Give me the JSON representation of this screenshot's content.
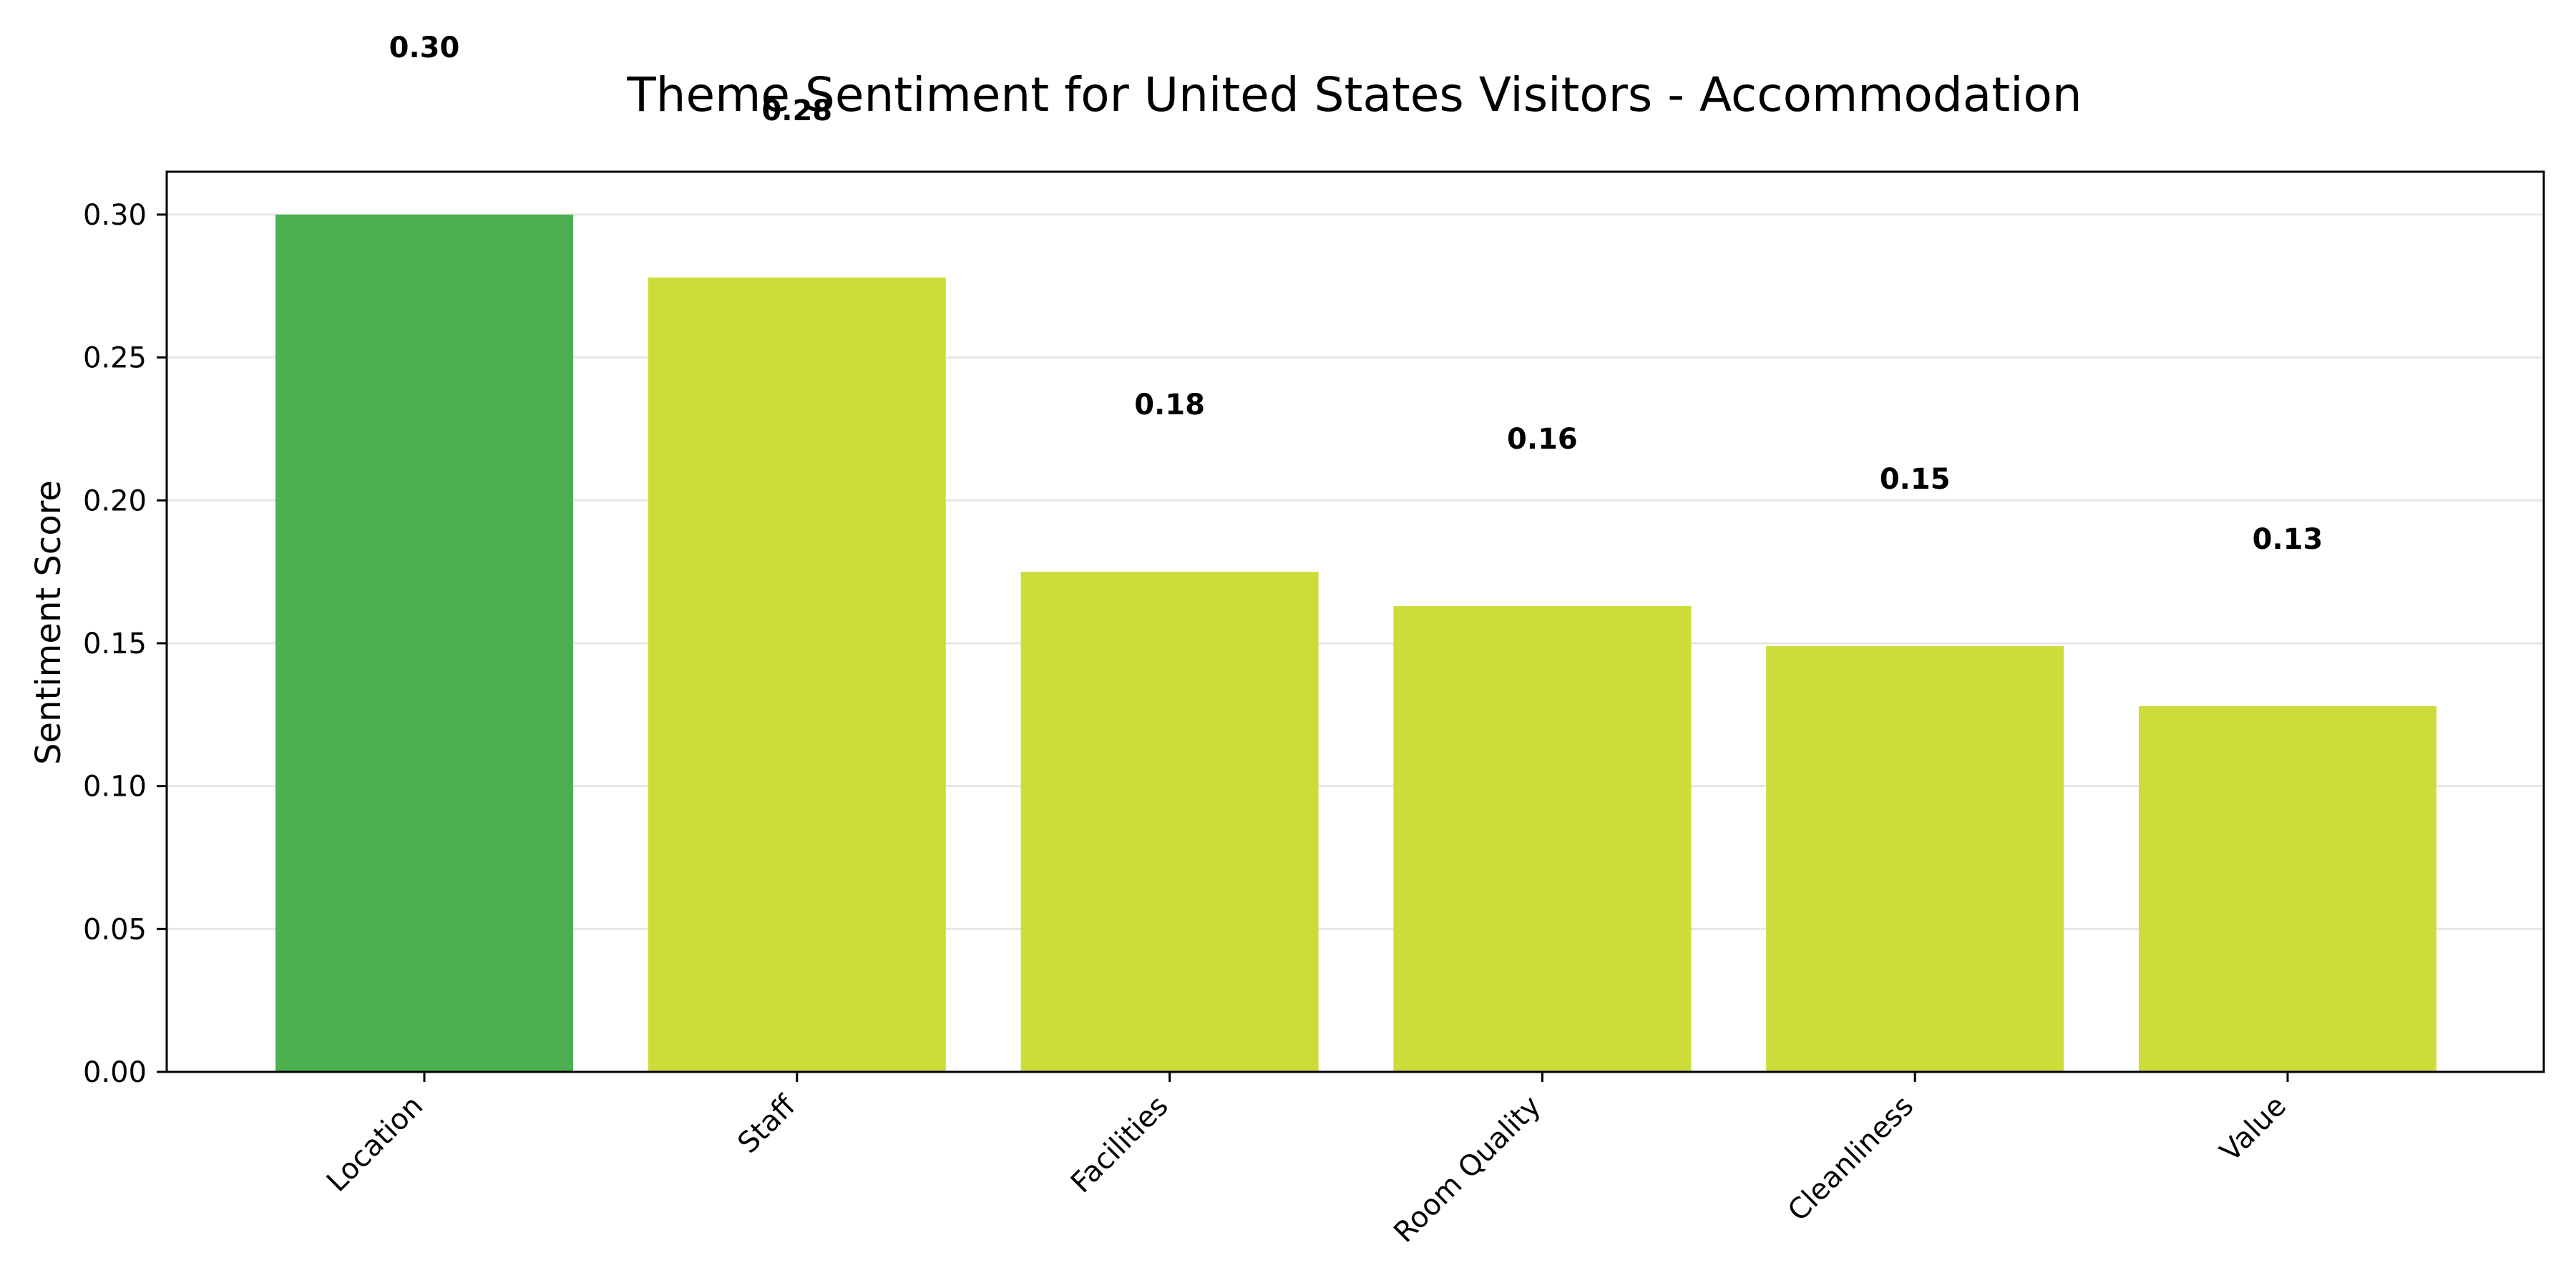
{
  "chart_data": {
    "type": "bar",
    "title": "Theme Sentiment for United States Visitors - Accommodation",
    "xlabel": "",
    "ylabel": "Sentiment Score",
    "categories": [
      "Location",
      "Staff",
      "Facilities",
      "Room Quality",
      "Cleanliness",
      "Value"
    ],
    "values": [
      0.3,
      0.278,
      0.175,
      0.163,
      0.149,
      0.128
    ],
    "value_labels": [
      "0.30",
      "0.28",
      "0.18",
      "0.16",
      "0.15",
      "0.13"
    ],
    "ylim": [
      0,
      0.315
    ],
    "yticks": [
      0.0,
      0.05,
      0.1,
      0.15,
      0.2,
      0.25,
      0.3
    ],
    "ytick_labels": [
      "0.00",
      "0.05",
      "0.10",
      "0.15",
      "0.20",
      "0.25",
      "0.30"
    ],
    "colors": [
      "#4caf50",
      "#cddc39",
      "#cddc39",
      "#cddc39",
      "#cddc39",
      "#cddc39"
    ],
    "grid": true,
    "grid_axis": "y",
    "legend": false
  }
}
